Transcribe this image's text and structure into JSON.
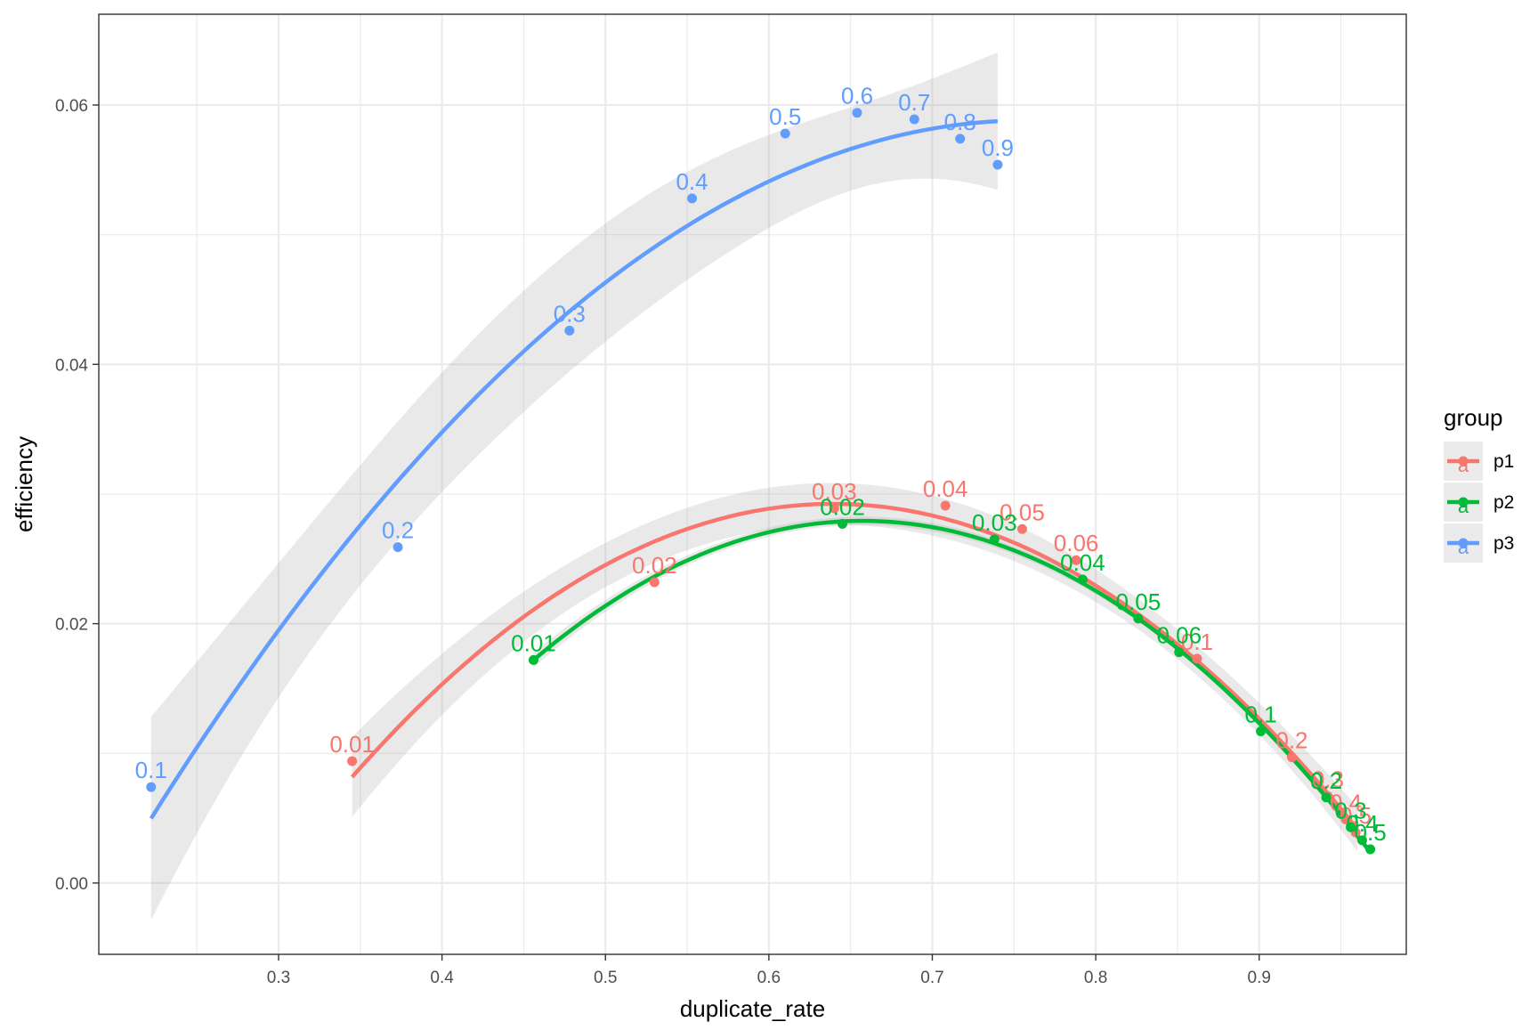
{
  "chart_data": {
    "type": "scatter",
    "xlabel": "duplicate_rate",
    "ylabel": "efficiency",
    "xlim": [
      0.19,
      0.99
    ],
    "ylim": [
      -0.0055,
      0.067
    ],
    "x_ticks": [
      0.3,
      0.4,
      0.5,
      0.6,
      0.7,
      0.8,
      0.9
    ],
    "x_tick_labels": [
      "0.3",
      "0.4",
      "0.5",
      "0.6",
      "0.7",
      "0.8",
      "0.9"
    ],
    "y_ticks": [
      0.0,
      0.02,
      0.04,
      0.06
    ],
    "y_tick_labels": [
      "0.00",
      "0.02",
      "0.04",
      "0.06"
    ],
    "grid": true,
    "legend": {
      "title": "group",
      "position": "right",
      "glyph": "a"
    },
    "smooth": "quadratic fit with confidence band",
    "series": [
      {
        "name": "p1",
        "color": "#F8766D",
        "points": [
          {
            "x": 0.345,
            "y": 0.0094,
            "label": "0.01"
          },
          {
            "x": 0.53,
            "y": 0.0232,
            "label": "0.02"
          },
          {
            "x": 0.64,
            "y": 0.0289,
            "label": "0.03"
          },
          {
            "x": 0.708,
            "y": 0.0291,
            "label": "0.04"
          },
          {
            "x": 0.755,
            "y": 0.0273,
            "label": "0.05"
          },
          {
            "x": 0.788,
            "y": 0.0249,
            "label": "0.06"
          },
          {
            "x": 0.862,
            "y": 0.0173,
            "label": "0.1"
          },
          {
            "x": 0.92,
            "y": 0.0097,
            "label": "0.2"
          },
          {
            "x": 0.942,
            "y": 0.0067,
            "label": "0.3"
          },
          {
            "x": 0.953,
            "y": 0.0049,
            "label": "0.4"
          },
          {
            "x": 0.959,
            "y": 0.0039,
            "label": "0.5"
          }
        ],
        "fit_range": [
          0.345,
          0.96
        ]
      },
      {
        "name": "p2",
        "color": "#00BA38",
        "points": [
          {
            "x": 0.456,
            "y": 0.0172,
            "label": "0.01"
          },
          {
            "x": 0.645,
            "y": 0.0277,
            "label": "0.02"
          },
          {
            "x": 0.738,
            "y": 0.0265,
            "label": "0.03"
          },
          {
            "x": 0.792,
            "y": 0.0234,
            "label": "0.04"
          },
          {
            "x": 0.826,
            "y": 0.0204,
            "label": "0.05"
          },
          {
            "x": 0.851,
            "y": 0.0178,
            "label": "0.06"
          },
          {
            "x": 0.901,
            "y": 0.0117,
            "label": "0.1"
          },
          {
            "x": 0.941,
            "y": 0.0066,
            "label": "0.2"
          },
          {
            "x": 0.956,
            "y": 0.0043,
            "label": "0.3"
          },
          {
            "x": 0.963,
            "y": 0.0033,
            "label": "0.4"
          },
          {
            "x": 0.968,
            "y": 0.0026,
            "label": "0.5"
          }
        ],
        "fit_range": [
          0.456,
          0.968
        ]
      },
      {
        "name": "p3",
        "color": "#619CFF",
        "points": [
          {
            "x": 0.222,
            "y": 0.0074,
            "label": "0.1"
          },
          {
            "x": 0.373,
            "y": 0.0259,
            "label": "0.2"
          },
          {
            "x": 0.478,
            "y": 0.0426,
            "label": "0.3"
          },
          {
            "x": 0.553,
            "y": 0.0528,
            "label": "0.4"
          },
          {
            "x": 0.61,
            "y": 0.0578,
            "label": "0.5"
          },
          {
            "x": 0.654,
            "y": 0.0594,
            "label": "0.6"
          },
          {
            "x": 0.689,
            "y": 0.0589,
            "label": "0.7"
          },
          {
            "x": 0.717,
            "y": 0.0574,
            "label": "0.8"
          },
          {
            "x": 0.74,
            "y": 0.0554,
            "label": "0.9"
          }
        ],
        "fit_range": [
          0.222,
          0.74
        ]
      }
    ]
  }
}
